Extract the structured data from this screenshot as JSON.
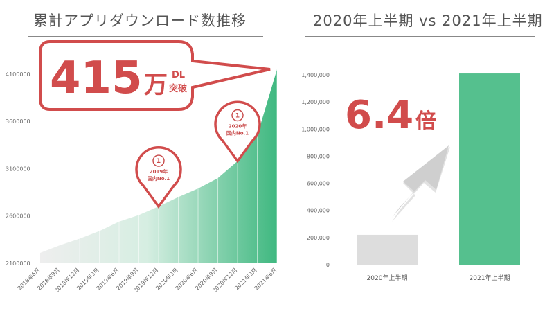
{
  "chart_data": [
    {
      "type": "area",
      "title": "累計アプリダウンロード数推移",
      "x": [
        "2018年6月",
        "2018年9月",
        "2018年12月",
        "2019年3月",
        "2019年6月",
        "2019年9月",
        "2019年12月",
        "2020年3月",
        "2020年6月",
        "2020年9月",
        "2020年12月",
        "2021年3月",
        "2021年6月"
      ],
      "values": [
        2210000,
        2290000,
        2360000,
        2440000,
        2540000,
        2610000,
        2700000,
        2800000,
        2890000,
        3000000,
        3180000,
        3450000,
        4150000
      ],
      "yticks": [
        "2100000",
        "2600000",
        "3100000",
        "3600000",
        "4100000"
      ],
      "ylim": [
        2100000,
        4150000
      ],
      "color": "#55c08e",
      "callout": {
        "number": "415",
        "unit": "万",
        "suffix_top": "DL",
        "suffix_bottom": "突破"
      },
      "annotations": [
        {
          "x": "2019年12月",
          "lines": [
            "2019年",
            "国内No.1"
          ]
        },
        {
          "x": "2020年12月",
          "lines": [
            "2020年",
            "国内No.1"
          ]
        }
      ]
    },
    {
      "type": "bar",
      "title": "2020年上半期 vs 2021年上半期",
      "categories": [
        "2020年上半期",
        "2021年上半期"
      ],
      "values": [
        220000,
        1410000
      ],
      "colors": [
        "#dddddd",
        "#55c08e"
      ],
      "yticks": [
        "0",
        "200,000",
        "400,000",
        "600,000",
        "800,000",
        "1,000,000",
        "1,200,000",
        "1,400,000"
      ],
      "ylim": [
        0,
        1400000
      ],
      "callout": {
        "number": "6.4",
        "unit": "倍"
      }
    }
  ]
}
